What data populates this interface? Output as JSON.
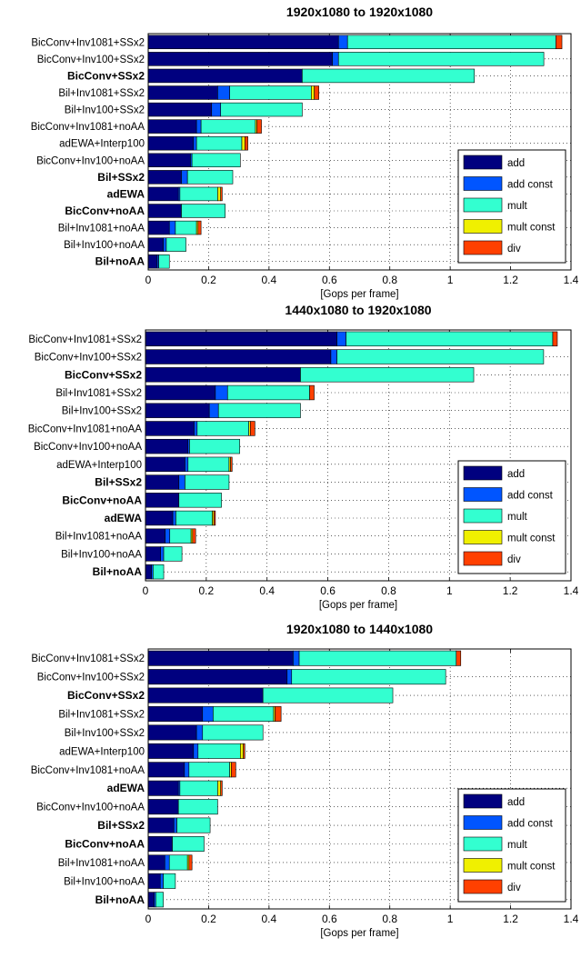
{
  "colors": {
    "add": "#00007f",
    "add const": "#0055ff",
    "mult": "#33ffd0",
    "mult const": "#f0f000",
    "div": "#ff4000"
  },
  "chart_data": [
    {
      "type": "bar",
      "orientation": "horizontal",
      "stacked": true,
      "title": "1920x1080 to 1920x1080",
      "xlabel": "[Gops per frame]",
      "ylabel": "",
      "xlim": [
        0,
        1.4
      ],
      "xticks": [
        "0",
        "0.2",
        "0.4",
        "0.6",
        "0.8",
        "1",
        "1.2",
        "1.4"
      ],
      "grid": true,
      "legend_position": "lower-right",
      "categories": [
        "BicConv+Inv1081+SSx2",
        "BicConv+Inv100+SSx2",
        "BicConv+SSx2",
        "Bil+Inv1081+SSx2",
        "Bil+Inv100+SSx2",
        "BicConv+Inv1081+noAA",
        "adEWA+Interp100",
        "BicConv+Inv100+noAA",
        "Bil+SSx2",
        "adEWA",
        "BicConv+noAA",
        "Bil+Inv1081+noAA",
        "Bil+Inv100+noAA",
        "Bil+noAA"
      ],
      "bold_categories": [
        "BicConv+SSx2",
        "Bil+SSx2",
        "adEWA",
        "BicConv+noAA",
        "Bil+noAA"
      ],
      "series": [
        {
          "name": "add",
          "values": [
            0.63,
            0.61,
            0.51,
            0.23,
            0.21,
            0.16,
            0.15,
            0.14,
            0.11,
            0.1,
            0.11,
            0.07,
            0.05,
            0.03
          ]
        },
        {
          "name": "add const",
          "values": [
            0.03,
            0.02,
            0.0,
            0.04,
            0.03,
            0.015,
            0.01,
            0.005,
            0.02,
            0.005,
            0.0,
            0.02,
            0.01,
            0.005
          ]
        },
        {
          "name": "mult",
          "values": [
            0.69,
            0.68,
            0.57,
            0.27,
            0.27,
            0.18,
            0.15,
            0.16,
            0.15,
            0.125,
            0.145,
            0.07,
            0.065,
            0.035
          ]
        },
        {
          "name": "mult const",
          "values": [
            0.0,
            0.0,
            0.0,
            0.01,
            0.0,
            0.005,
            0.01,
            0.0,
            0.0,
            0.01,
            0.0,
            0.005,
            0.0,
            0.0
          ]
        },
        {
          "name": "div",
          "values": [
            0.02,
            0.0,
            0.0,
            0.015,
            0.0,
            0.015,
            0.01,
            0.0,
            0.0,
            0.005,
            0.0,
            0.01,
            0.0,
            0.0
          ]
        }
      ]
    },
    {
      "type": "bar",
      "orientation": "horizontal",
      "stacked": true,
      "title": "1440x1080 to 1920x1080",
      "xlabel": "[Gops per frame]",
      "ylabel": "",
      "xlim": [
        0,
        1.4
      ],
      "xticks": [
        "0",
        "0.2",
        "0.4",
        "0.6",
        "0.8",
        "1",
        "1.2",
        "1.4"
      ],
      "grid": true,
      "legend_position": "lower-right",
      "categories": [
        "BicConv+Inv1081+SSx2",
        "BicConv+Inv100+SSx2",
        "BicConv+SSx2",
        "Bil+Inv1081+SSx2",
        "Bil+Inv100+SSx2",
        "BicConv+Inv1081+noAA",
        "BicConv+Inv100+noAA",
        "adEWA+Interp100",
        "Bil+SSx2",
        "BicConv+noAA",
        "adEWA",
        "Bil+Inv1081+noAA",
        "Bil+Inv100+noAA",
        "Bil+noAA"
      ],
      "bold_categories": [
        "BicConv+SSx2",
        "Bil+SSx2",
        "BicConv+noAA",
        "adEWA",
        "Bil+noAA"
      ],
      "series": [
        {
          "name": "add",
          "values": [
            0.63,
            0.61,
            0.51,
            0.23,
            0.21,
            0.16,
            0.14,
            0.13,
            0.11,
            0.11,
            0.09,
            0.065,
            0.05,
            0.02
          ]
        },
        {
          "name": "add const",
          "values": [
            0.03,
            0.02,
            0.0,
            0.04,
            0.03,
            0.01,
            0.005,
            0.01,
            0.02,
            0.0,
            0.01,
            0.015,
            0.01,
            0.005
          ]
        },
        {
          "name": "mult",
          "values": [
            0.68,
            0.68,
            0.57,
            0.27,
            0.27,
            0.17,
            0.165,
            0.135,
            0.145,
            0.14,
            0.12,
            0.07,
            0.06,
            0.035
          ]
        },
        {
          "name": "mult const",
          "values": [
            0.0,
            0.0,
            0.0,
            0.0,
            0.0,
            0.005,
            0.0,
            0.005,
            0.0,
            0.0,
            0.005,
            0.005,
            0.0,
            0.0
          ]
        },
        {
          "name": "div",
          "values": [
            0.015,
            0.0,
            0.0,
            0.015,
            0.0,
            0.015,
            0.0,
            0.005,
            0.0,
            0.0,
            0.005,
            0.01,
            0.0,
            0.0
          ]
        }
      ]
    },
    {
      "type": "bar",
      "orientation": "horizontal",
      "stacked": true,
      "title": "1920x1080 to 1440x1080",
      "xlabel": "[Gops per frame]",
      "ylabel": "",
      "xlim": [
        0,
        1.4
      ],
      "xticks": [
        "0",
        "0.2",
        "0.4",
        "0.6",
        "0.8",
        "1",
        "1.2",
        "1.4"
      ],
      "grid": true,
      "legend_position": "lower-right",
      "categories": [
        "BicConv+Inv1081+SSx2",
        "BicConv+Inv100+SSx2",
        "BicConv+SSx2",
        "Bil+Inv1081+SSx2",
        "Bil+Inv100+SSx2",
        "adEWA+Interp100",
        "BicConv+Inv1081+noAA",
        "adEWA",
        "BicConv+Inv100+noAA",
        "Bil+SSx2",
        "BicConv+noAA",
        "Bil+Inv1081+noAA",
        "Bil+Inv100+noAA",
        "Bil+noAA"
      ],
      "bold_categories": [
        "BicConv+SSx2",
        "adEWA",
        "Bil+SSx2",
        "BicConv+noAA",
        "Bil+noAA"
      ],
      "series": [
        {
          "name": "add",
          "values": [
            0.48,
            0.46,
            0.38,
            0.18,
            0.16,
            0.15,
            0.12,
            0.1,
            0.1,
            0.085,
            0.08,
            0.055,
            0.04,
            0.02
          ]
        },
        {
          "name": "add const",
          "values": [
            0.02,
            0.015,
            0.0,
            0.035,
            0.02,
            0.015,
            0.015,
            0.005,
            0.0,
            0.01,
            0.0,
            0.015,
            0.01,
            0.005
          ]
        },
        {
          "name": "mult",
          "values": [
            0.52,
            0.51,
            0.43,
            0.2,
            0.2,
            0.14,
            0.135,
            0.125,
            0.13,
            0.11,
            0.105,
            0.06,
            0.04,
            0.025
          ]
        },
        {
          "name": "mult const",
          "values": [
            0.0,
            0.0,
            0.0,
            0.005,
            0.0,
            0.01,
            0.005,
            0.01,
            0.0,
            0.0,
            0.0,
            0.005,
            0.0,
            0.0
          ]
        },
        {
          "name": "div",
          "values": [
            0.015,
            0.0,
            0.0,
            0.02,
            0.0,
            0.005,
            0.015,
            0.005,
            0.0,
            0.0,
            0.0,
            0.01,
            0.0,
            0.0
          ]
        }
      ]
    }
  ]
}
